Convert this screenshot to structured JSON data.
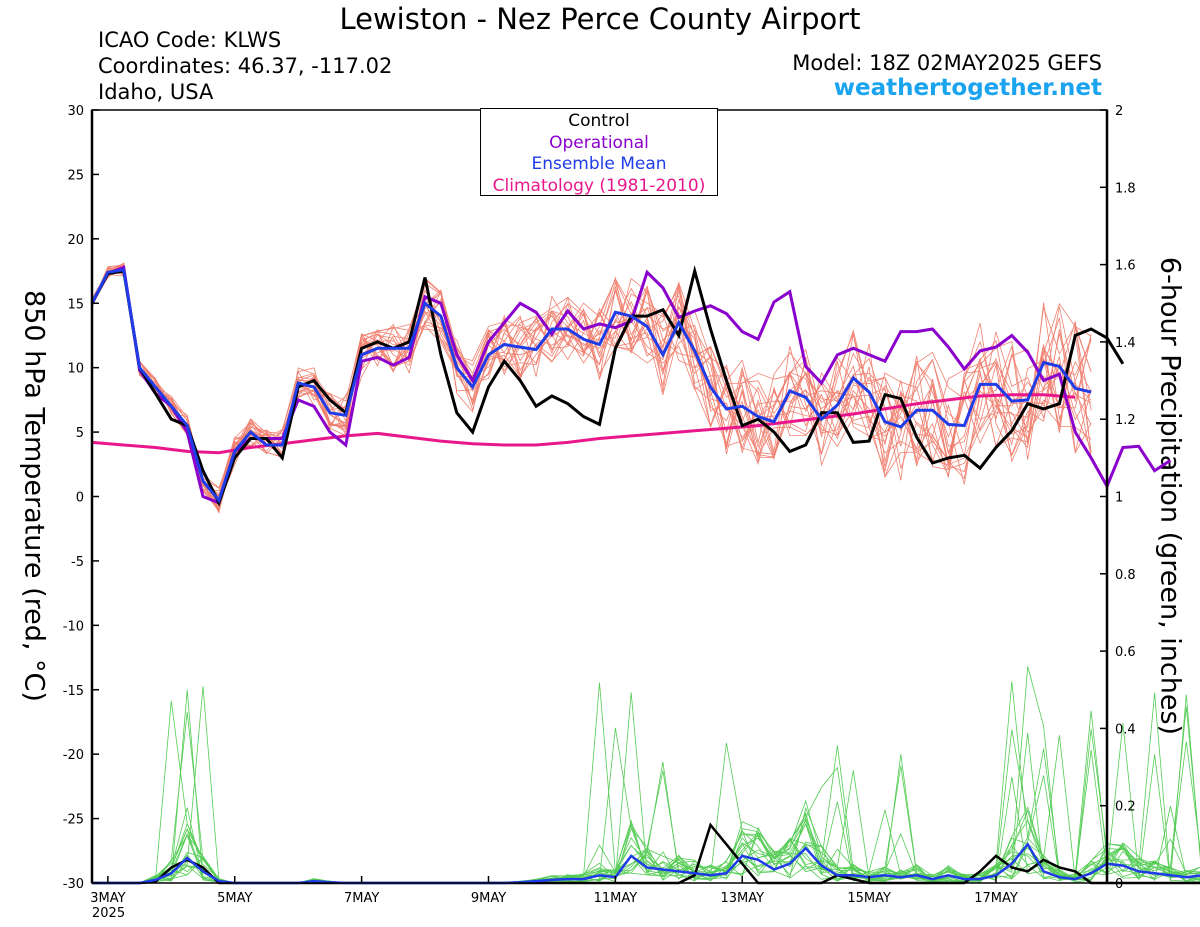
{
  "header": {
    "title": "Lewiston - Nez Perce County Airport",
    "icao": "ICAO Code: KLWS",
    "coordinates": "Coordinates: 46.37, -117.02",
    "region": "Idaho, USA",
    "model": "Model: 18Z 02MAY2025 GEFS",
    "site": "weathertogether.net"
  },
  "legend": {
    "control": "Control",
    "operational": "Operational",
    "mean": "Ensemble Mean",
    "climatology": "Climatology (1981-2010)"
  },
  "chart_data": {
    "type": "line",
    "ylabel_left": "850 hPa Temperature (red, °C)",
    "ylabel_right": "6-hour Precipitation (green, inches)",
    "ylim_left": [
      -30,
      30
    ],
    "ylim_right": [
      0,
      2
    ],
    "yticks_left": [
      "30",
      "25",
      "20",
      "15",
      "10",
      "5",
      "0",
      "-5",
      "-10",
      "-15",
      "-20",
      "-25",
      "-30"
    ],
    "yticks_right": [
      "2",
      "1.8",
      "1.6",
      "1.4",
      "1.2",
      "1",
      "0.8",
      "0.6",
      "0.4",
      "0.2",
      "0"
    ],
    "x_day_range": [
      2.75,
      18.75
    ],
    "x_ticks": [
      {
        "day": 3,
        "label": "3MAY"
      },
      {
        "day": 5,
        "label": "5MAY"
      },
      {
        "day": 7,
        "label": "7MAY"
      },
      {
        "day": 9,
        "label": "9MAY"
      },
      {
        "day": 11,
        "label": "11MAY"
      },
      {
        "day": 13,
        "label": "13MAY"
      },
      {
        "day": 15,
        "label": "15MAY"
      },
      {
        "day": 17,
        "label": "17MAY"
      }
    ],
    "year_label": "2025",
    "time_start_day": 2.75,
    "time_step_days": 0.25,
    "colors": {
      "members_temp": "#f08070",
      "members_precip": "#55cc55",
      "control": "#000000",
      "operational": "#8a00cc",
      "mean": "#1f3ce8",
      "climatology": "#e8188c"
    },
    "series": [
      {
        "name": "Control",
        "values": [
          15.0,
          17.3,
          17.5,
          10.0,
          8.0,
          6.0,
          5.5,
          2.0,
          -0.5,
          3.0,
          4.5,
          4.5,
          3.0,
          8.5,
          9.0,
          7.5,
          6.5,
          11.5,
          12.0,
          11.5,
          12.0,
          17.0,
          11.0,
          6.5,
          5.0,
          8.5,
          10.5,
          9.0,
          7.0,
          7.8,
          7.2,
          6.2,
          5.6,
          11.5,
          14.0,
          14.0,
          14.5,
          12.5,
          17.5,
          13.0,
          9.0,
          5.5,
          6.0,
          5.0,
          3.5,
          4.0,
          6.5,
          6.5,
          4.2,
          4.3,
          7.9,
          7.6,
          4.6,
          2.6,
          3.0,
          3.2,
          2.2,
          3.8,
          5.1,
          7.2,
          6.8,
          7.2,
          12.5,
          13.0,
          12.3,
          10.3
        ]
      },
      {
        "name": "Operational",
        "values": [
          15.0,
          17.3,
          17.8,
          9.8,
          8.0,
          7.0,
          5.0,
          0.0,
          -0.5,
          3.5,
          4.5,
          4.5,
          4.5,
          7.5,
          7.0,
          5.0,
          4.0,
          10.5,
          10.8,
          10.2,
          10.8,
          15.5,
          15.0,
          11.0,
          9.0,
          12.0,
          13.5,
          15.0,
          14.3,
          12.6,
          14.4,
          13.0,
          13.4,
          13.1,
          13.6,
          17.4,
          16.2,
          13.9,
          14.4,
          14.8,
          14.2,
          12.8,
          12.2,
          15.1,
          15.9,
          10.1,
          8.8,
          11.0,
          11.5,
          11.0,
          10.5,
          12.8,
          12.8,
          13.0,
          11.6,
          9.9,
          11.3,
          11.6,
          12.5,
          11.2,
          9.0,
          9.5,
          5.0,
          3.0,
          0.8,
          3.8,
          3.9,
          2.0,
          2.8
        ]
      },
      {
        "name": "Ensemble Mean",
        "values": [
          15.0,
          17.4,
          17.6,
          10.0,
          8.5,
          7.0,
          5.5,
          1.2,
          -0.3,
          3.5,
          5.0,
          4.0,
          4.0,
          8.8,
          8.5,
          6.5,
          6.3,
          11.0,
          11.5,
          11.5,
          11.5,
          15.0,
          14.0,
          10.0,
          8.5,
          11.0,
          11.8,
          11.6,
          11.4,
          13.0,
          13.0,
          12.2,
          11.8,
          14.3,
          14.0,
          13.2,
          11.0,
          13.5,
          11.3,
          8.5,
          6.8,
          7.0,
          6.2,
          5.8,
          8.2,
          7.7,
          6.0,
          7.1,
          9.2,
          8.1,
          5.8,
          5.4,
          6.7,
          6.7,
          5.6,
          5.5,
          8.7,
          8.7,
          7.4,
          7.5,
          10.4,
          10.1,
          8.4,
          8.1
        ]
      },
      {
        "name": "Climatology (1981-2010)",
        "values": [
          4.2,
          4.0,
          3.8,
          3.5,
          3.4,
          3.8,
          4.1,
          4.4,
          4.7,
          4.9,
          4.6,
          4.3,
          4.1,
          4.0,
          4.0,
          4.2,
          4.5,
          4.7,
          4.9,
          5.1,
          5.3,
          5.5,
          5.8,
          6.1,
          6.4,
          6.8,
          7.2,
          7.5,
          7.8,
          7.9,
          7.9,
          7.7
        ]
      },
      {
        "name": "Control Precip",
        "values": [
          0,
          0,
          0,
          0,
          0.003,
          0.04,
          0.06,
          0.04,
          0,
          0,
          0,
          0,
          0,
          0,
          0,
          0,
          0,
          0,
          0,
          0,
          0,
          0,
          0,
          0,
          0,
          0,
          0,
          0,
          0,
          0,
          0,
          0,
          0,
          0,
          0,
          0,
          0,
          0,
          0.02,
          0.15,
          0.1,
          0.05,
          0,
          0,
          0,
          0,
          0,
          0.02,
          0.01,
          0,
          0,
          0,
          0,
          0,
          0,
          0,
          0.03,
          0.07,
          0.04,
          0.03,
          0.06,
          0.04,
          0.03,
          0,
          0,
          0,
          0,
          0,
          0,
          0,
          0,
          0,
          0
        ]
      },
      {
        "name": "Ensemble Mean Precip",
        "values": [
          0,
          0,
          0,
          0,
          0.008,
          0.025,
          0.065,
          0.03,
          0.005,
          0,
          0,
          0,
          0,
          0,
          0.005,
          0.002,
          0,
          0,
          0,
          0,
          0,
          0,
          0,
          0,
          0,
          0,
          0,
          0.002,
          0.005,
          0.008,
          0.01,
          0.01,
          0.02,
          0.015,
          0.07,
          0.04,
          0.035,
          0.03,
          0.025,
          0.02,
          0.025,
          0.07,
          0.06,
          0.035,
          0.05,
          0.09,
          0.045,
          0.02,
          0.02,
          0.015,
          0.02,
          0.015,
          0.02,
          0.01,
          0.02,
          0.01,
          0.01,
          0.02,
          0.05,
          0.1,
          0.03,
          0.015,
          0.01,
          0.025,
          0.05,
          0.045,
          0.03,
          0.025,
          0.02,
          0.015,
          0.02,
          0.015,
          0.01,
          0.02,
          0.025,
          0.03,
          0.02,
          0.015,
          0.01,
          0.02
        ]
      }
    ]
  }
}
